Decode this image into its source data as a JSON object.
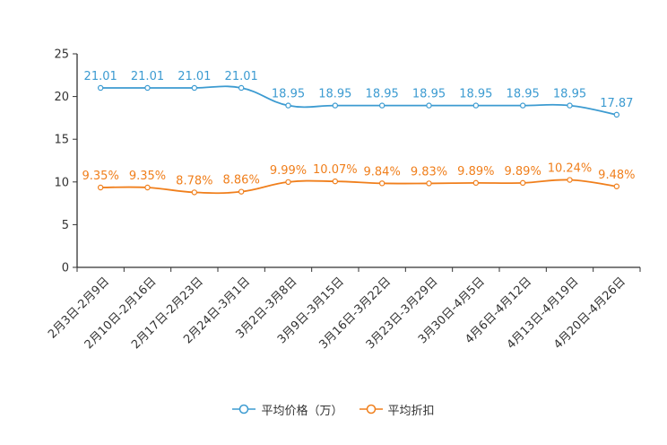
{
  "chart_data": {
    "type": "line",
    "categories": [
      "2月3日-2月9日",
      "2月10日-2月16日",
      "2月17日-2月23日",
      "2月24日-3月1日",
      "3月2日-3月8日",
      "3月9日-3月15日",
      "3月16日-3月22日",
      "3月23日-3月29日",
      "3月30日-4月5日",
      "4月6日-4月12日",
      "4月13日-4月19日",
      "4月20日-4月26日"
    ],
    "yticks": [
      0,
      5,
      10,
      15,
      20,
      25
    ],
    "ylim": [
      0,
      25
    ],
    "series": [
      {
        "name": "平均价格（万）",
        "color": "#3c9bd1",
        "values": [
          21.01,
          21.01,
          21.01,
          21.01,
          18.95,
          18.95,
          18.95,
          18.95,
          18.95,
          18.95,
          18.95,
          17.87
        ],
        "labels": [
          "21.01",
          "21.01",
          "21.01",
          "21.01",
          "18.95",
          "18.95",
          "18.95",
          "18.95",
          "18.95",
          "18.95",
          "18.95",
          "17.87"
        ]
      },
      {
        "name": "平均折扣",
        "color": "#f07f1c",
        "values": [
          9.35,
          9.35,
          8.78,
          8.86,
          9.99,
          10.07,
          9.84,
          9.83,
          9.89,
          9.89,
          10.24,
          9.48
        ],
        "labels": [
          "9.35%",
          "9.35%",
          "8.78%",
          "8.86%",
          "9.99%",
          "10.07%",
          "9.84%",
          "9.83%",
          "9.89%",
          "9.89%",
          "10.24%",
          "9.48%"
        ]
      }
    ]
  }
}
